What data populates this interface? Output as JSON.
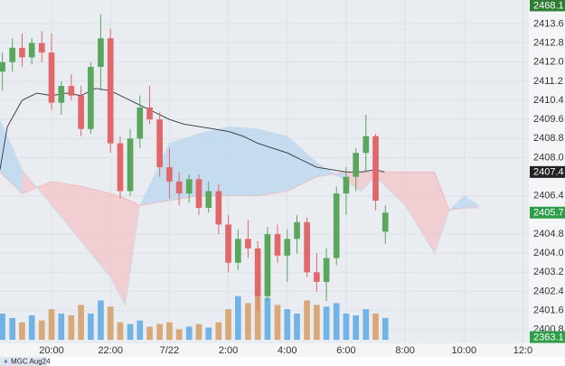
{
  "chart_data": {
    "type": "candlestick",
    "xlim": [
      18.25,
      36.2
    ],
    "xticks": [
      {
        "value": 20,
        "label": "20:00"
      },
      {
        "value": 22,
        "label": "22:00"
      },
      {
        "value": 24,
        "label": "7/22"
      },
      {
        "value": 26,
        "label": "2:00"
      },
      {
        "value": 28,
        "label": "4:00"
      },
      {
        "value": 30,
        "label": "6:00"
      },
      {
        "value": 32,
        "label": "8:00"
      },
      {
        "value": 34,
        "label": "10:00"
      },
      {
        "value": 36,
        "label": "12:0"
      }
    ],
    "ylim": [
      2400.3,
      2414.6
    ],
    "yticks": [
      2413.6,
      2412.8,
      {
        "value": 2412,
        "label": "2412.0"
      },
      2411.2,
      2410.4,
      2409.6,
      2408.8,
      {
        "value": 2408,
        "label": "2408.0"
      },
      2406.4,
      2404.8,
      {
        "value": 2404,
        "label": "2404.0"
      },
      2403.2,
      2402.4,
      2401.6,
      2400.8
    ],
    "grid": true,
    "up_color": "#5aa65c",
    "down_color": "#e0686a",
    "volume_up_color": "#72b3e6",
    "volume_down_color": "#d8a878",
    "x": [
      18.33,
      18.67,
      19,
      19.33,
      19.67,
      20,
      20.33,
      20.67,
      21,
      21.33,
      21.67,
      22,
      22.33,
      22.67,
      23,
      23.33,
      23.67,
      24,
      24.33,
      24.67,
      25,
      25.33,
      25.67,
      26,
      26.33,
      26.67,
      27,
      27.33,
      27.67,
      28,
      28.33,
      28.67,
      29,
      29.33,
      29.67,
      30,
      30.33,
      30.67,
      31,
      31.33
    ],
    "open": [
      2411.6,
      2412.0,
      2412.6,
      2412.2,
      2412.8,
      2412.4,
      2410.3,
      2411.0,
      2410.6,
      2409.2,
      2411.8,
      2413.0,
      2408.6,
      2406.6,
      2408.8,
      2410.1,
      2409.6,
      2407.6,
      2407.0,
      2406.5,
      2407.1,
      2405.9,
      2406.6,
      2405.2,
      2403.6,
      2404.6,
      2404.2,
      2402.2,
      2404.8,
      2403.9,
      2404.6,
      2405.3,
      2403.2,
      2402.8,
      2403.8,
      2406.5,
      2407.2,
      2408.2,
      2408.9,
      2404.9
    ],
    "high": [
      2412.4,
      2413.0,
      2413.2,
      2413.0,
      2413.3,
      2413.2,
      2411.2,
      2411.5,
      2411.0,
      2412.0,
      2414.0,
      2413.4,
      2408.9,
      2409.2,
      2410.6,
      2411.0,
      2409.9,
      2408.4,
      2407.4,
      2407.3,
      2407.3,
      2407.0,
      2406.9,
      2405.6,
      2405.0,
      2405.4,
      2404.5,
      2405.1,
      2405.2,
      2405.0,
      2405.6,
      2405.5,
      2404.0,
      2404.2,
      2406.8,
      2407.6,
      2408.4,
      2409.8,
      2409.0,
      2406.0
    ],
    "low": [
      2410.8,
      2411.6,
      2411.8,
      2411.9,
      2412.0,
      2410.0,
      2409.8,
      2410.4,
      2408.9,
      2409.0,
      2410.8,
      2408.2,
      2406.3,
      2406.4,
      2408.4,
      2409.4,
      2407.2,
      2406.3,
      2406.0,
      2406.1,
      2405.6,
      2405.7,
      2404.8,
      2403.2,
      2403.3,
      2403.8,
      2401.6,
      2402.0,
      2403.6,
      2402.8,
      2404.0,
      2403.0,
      2402.4,
      2402.0,
      2403.5,
      2405.6,
      2406.6,
      2407.4,
      2405.8,
      2404.4
    ],
    "close": [
      2412.0,
      2412.6,
      2412.2,
      2412.8,
      2412.4,
      2410.3,
      2411.0,
      2410.6,
      2409.2,
      2411.8,
      2413.0,
      2408.6,
      2406.6,
      2408.8,
      2410.1,
      2409.6,
      2407.6,
      2407.0,
      2406.5,
      2407.1,
      2405.9,
      2406.6,
      2405.2,
      2403.6,
      2404.6,
      2404.2,
      2402.2,
      2404.8,
      2403.9,
      2404.6,
      2405.3,
      2403.2,
      2402.8,
      2403.8,
      2406.5,
      2407.2,
      2408.2,
      2408.9,
      2406.2,
      2405.7
    ],
    "volume": [
      30,
      25,
      20,
      28,
      22,
      35,
      30,
      28,
      40,
      30,
      45,
      38,
      20,
      18,
      22,
      15,
      18,
      20,
      12,
      15,
      18,
      14,
      20,
      35,
      50,
      42,
      60,
      48,
      40,
      35,
      30,
      45,
      40,
      38,
      42,
      30,
      28,
      35,
      30,
      25
    ],
    "ma": {
      "color": "#333333",
      "x": [
        18.25,
        18.5,
        19,
        19.5,
        20,
        20.5,
        21,
        21.5,
        22,
        22.5,
        23,
        23.5,
        24,
        24.5,
        25,
        25.5,
        26,
        26.5,
        27,
        27.5,
        28,
        28.5,
        29,
        29.5,
        30,
        30.5,
        31,
        31.3
      ],
      "values": [
        2407.5,
        2409.3,
        2410.4,
        2410.7,
        2410.6,
        2410.7,
        2410.6,
        2410.9,
        2410.8,
        2410.5,
        2410.2,
        2409.9,
        2409.6,
        2409.4,
        2409.3,
        2409.2,
        2409.1,
        2408.9,
        2408.6,
        2408.4,
        2408.2,
        2407.9,
        2407.6,
        2407.5,
        2407.4,
        2407.4,
        2407.5,
        2407.4
      ]
    },
    "cloud": {
      "up_color": "#b8d6ee",
      "down_color": "#f2c4c6",
      "x": [
        18.25,
        19,
        20,
        21,
        22,
        22.5,
        23,
        24,
        25,
        26,
        27,
        28,
        29,
        30,
        30.5,
        31,
        32,
        33,
        33.5,
        34,
        34.5
      ],
      "span_a": [
        2409.6,
        2407.5,
        2406.0,
        2404.5,
        2403.0,
        2401.8,
        2406.0,
        2408.6,
        2409.0,
        2409.3,
        2409.2,
        2408.9,
        2407.8,
        2407.0,
        2406.6,
        2407.2,
        2406.0,
        2404.0,
        2405.8,
        2406.4,
        2406.0
      ],
      "span_b": [
        2407.4,
        2406.5,
        2407.0,
        2406.8,
        2406.5,
        2406.3,
        2406.0,
        2406.2,
        2406.4,
        2406.4,
        2406.4,
        2406.6,
        2407.2,
        2407.4,
        2407.4,
        2407.4,
        2407.4,
        2407.4,
        2405.8,
        2405.9,
        2405.9
      ]
    },
    "price_labels": [
      {
        "value": 2468.1,
        "color": "#2e7d32"
      },
      {
        "value": 2407.4,
        "color": "#222222"
      },
      {
        "value": 2405.7,
        "color": "#2e9d48"
      },
      {
        "value": 2363.1,
        "color": "#2e9d48"
      }
    ]
  },
  "footer": {
    "symbol": "MGC Aug24"
  }
}
